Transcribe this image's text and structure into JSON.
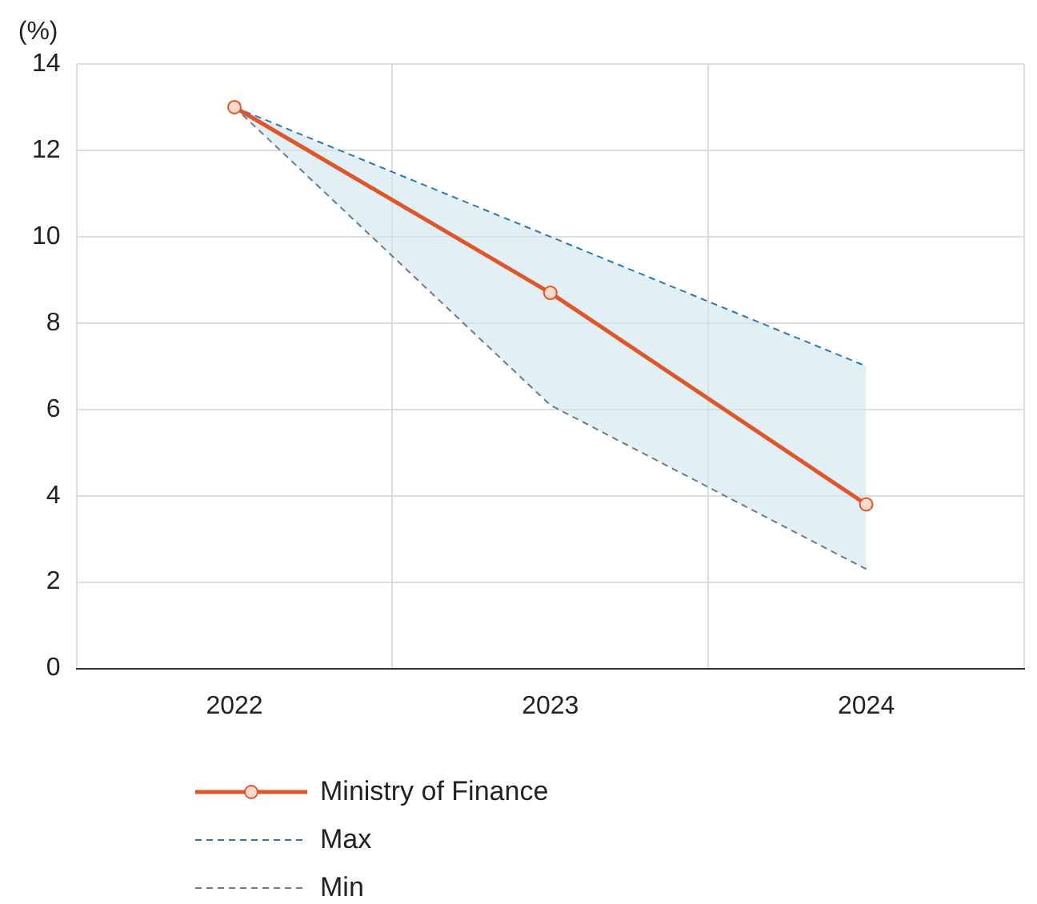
{
  "chart_data": {
    "type": "line",
    "ylabel": "(%)",
    "categories": [
      "2022",
      "2023",
      "2024"
    ],
    "ylim": [
      0,
      14
    ],
    "yticks": [
      0,
      2,
      4,
      6,
      8,
      10,
      12,
      14
    ],
    "grid": true,
    "legend": "bottom",
    "series": [
      {
        "name": "Ministry of Finance",
        "color": "#e0552a",
        "values": [
          13,
          8.7,
          3.8
        ],
        "marker": "circle",
        "line_style": "solid"
      },
      {
        "name": "Max",
        "color": "#2e75b6",
        "values": [
          13,
          10,
          7
        ],
        "marker": "none",
        "line_style": "dashed"
      },
      {
        "name": "Min",
        "color": "#6b7b8a",
        "values": [
          13,
          6.1,
          2.3
        ],
        "marker": "none",
        "line_style": "dashed"
      }
    ]
  }
}
